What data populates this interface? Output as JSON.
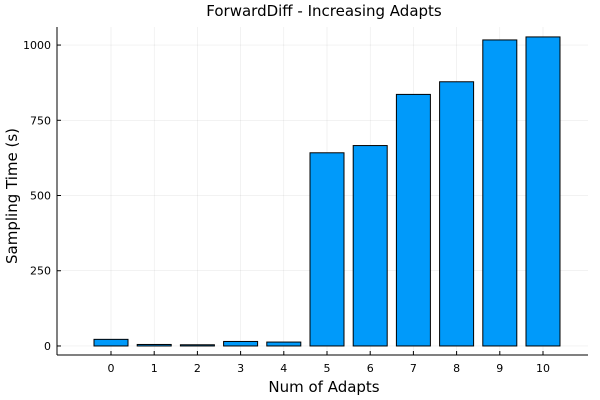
{
  "chart_data": {
    "type": "bar",
    "title": "ForwardDiff - Increasing Adapts",
    "xlabel": "Num of Adapts",
    "ylabel": "Sampling Time (s)",
    "categories": [
      "0",
      "1",
      "2",
      "3",
      "4",
      "5",
      "6",
      "7",
      "8",
      "9",
      "10"
    ],
    "values": [
      22,
      5,
      4,
      15,
      13,
      642,
      666,
      836,
      878,
      1017,
      1027
    ],
    "ylim": [
      -30,
      1060
    ],
    "yticks": [
      0,
      250,
      500,
      750,
      1000
    ],
    "ytick_labels": [
      "0",
      "250",
      "500",
      "750",
      "1000"
    ],
    "grid": true,
    "legend": "none",
    "bar_color": "#009AFA"
  }
}
